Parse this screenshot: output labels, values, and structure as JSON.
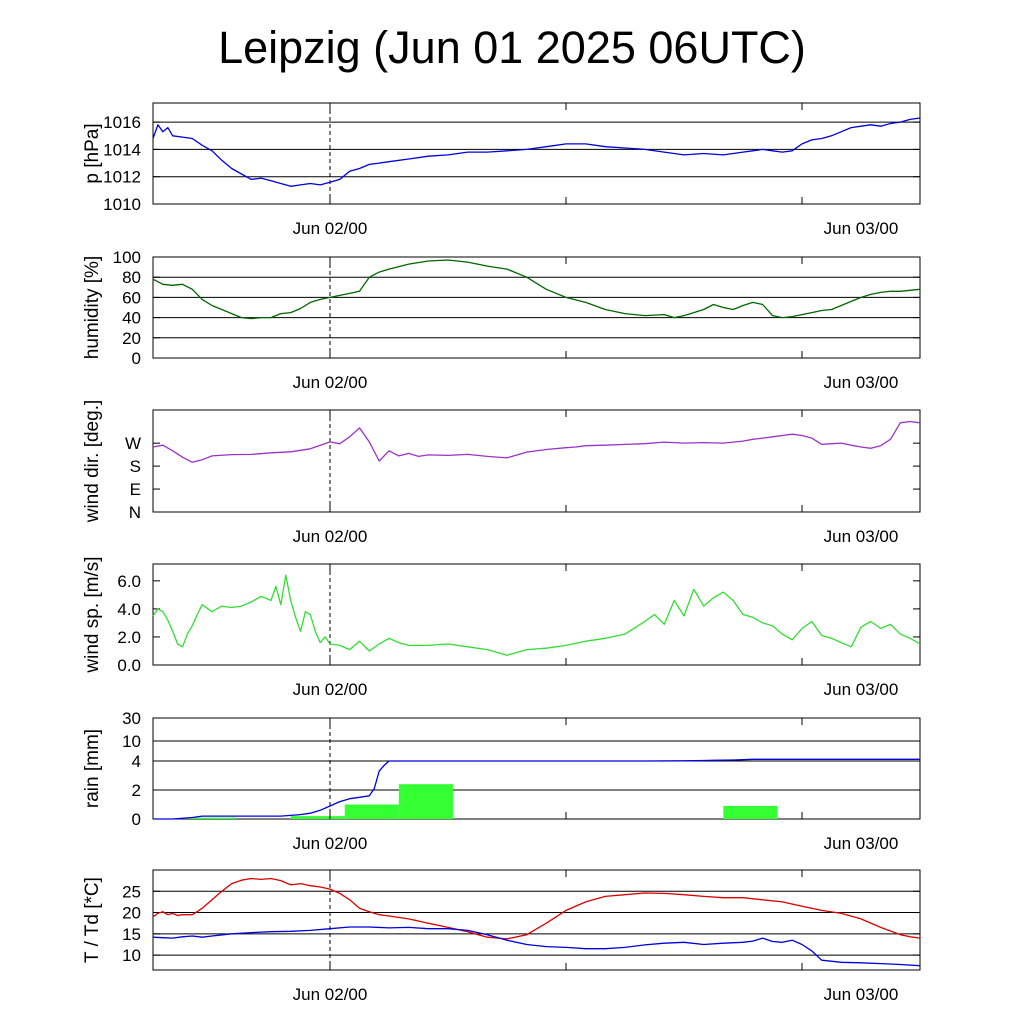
{
  "title": "Leipzig (Jun 01 2025 06UTC)",
  "time_axis": {
    "start": "Jun 01 2025 06UTC",
    "end": "Jun 03 2025 00UTC",
    "tick_labels": [
      "Jun 02/00",
      "Jun 03/00"
    ],
    "dashed_line_at": "Jun 02/00"
  },
  "chart_data": [
    {
      "type": "line",
      "ylabel": "p [hPa]",
      "ylim": [
        1010,
        1017.4
      ],
      "yticks": [
        1010,
        1012,
        1014,
        1016
      ],
      "ytick_labels": [
        "1010",
        "1012",
        "1014",
        "1016"
      ],
      "grid": "horizontal",
      "series": [
        {
          "color": "#0000dd",
          "x_hours": [
            0,
            0.5,
            1,
            1.5,
            2,
            3,
            4,
            5,
            6,
            7,
            8,
            9,
            10,
            11,
            12,
            13,
            14,
            15,
            16,
            17,
            18,
            19,
            20,
            21,
            22,
            23,
            24,
            26,
            28,
            30,
            32,
            34,
            36,
            38,
            40,
            42,
            44,
            46,
            48,
            50,
            52,
            54,
            56,
            58,
            60,
            61,
            62,
            63,
            64,
            65,
            66,
            67,
            68,
            69,
            70,
            71,
            72,
            73,
            74,
            75,
            76,
            77,
            78
          ],
          "values": [
            1014.8,
            1015.8,
            1015.3,
            1015.6,
            1015.0,
            1014.9,
            1014.8,
            1014.3,
            1013.9,
            1013.2,
            1012.6,
            1012.2,
            1011.8,
            1011.9,
            1011.7,
            1011.5,
            1011.3,
            1011.4,
            1011.5,
            1011.4,
            1011.6,
            1011.8,
            1012.4,
            1012.6,
            1012.9,
            1013.0,
            1013.1,
            1013.3,
            1013.5,
            1013.6,
            1013.8,
            1013.8,
            1013.9,
            1014.0,
            1014.2,
            1014.4,
            1014.4,
            1014.2,
            1014.1,
            1014.0,
            1013.8,
            1013.6,
            1013.7,
            1013.6,
            1013.8,
            1013.9,
            1014.0,
            1013.9,
            1013.8,
            1013.9,
            1014.4,
            1014.7,
            1014.8,
            1015.0,
            1015.3,
            1015.6,
            1015.7,
            1015.8,
            1015.7,
            1015.9,
            1016.0,
            1016.2,
            1016.3
          ]
        }
      ]
    },
    {
      "type": "line",
      "ylabel": "humidity [%]",
      "ylim": [
        0,
        100
      ],
      "yticks": [
        0,
        20,
        40,
        60,
        80,
        100
      ],
      "ytick_labels": [
        "0",
        "20",
        "40",
        "60",
        "80",
        "100"
      ],
      "grid": "horizontal",
      "series": [
        {
          "color": "#006600",
          "x_hours": [
            0,
            1,
            2,
            3,
            4,
            5,
            6,
            7,
            8,
            9,
            10,
            11,
            12,
            13,
            14,
            15,
            16,
            17,
            18,
            19,
            20,
            21,
            22,
            23,
            24,
            26,
            28,
            30,
            32,
            34,
            36,
            38,
            40,
            42,
            44,
            46,
            48,
            50,
            52,
            53,
            54,
            55,
            56,
            57,
            58,
            59,
            60,
            61,
            62,
            63,
            64,
            65,
            66,
            67,
            68,
            69,
            70,
            71,
            72,
            73,
            74,
            75,
            76,
            77,
            78
          ],
          "values": [
            78,
            73,
            72,
            73,
            68,
            58,
            52,
            48,
            44,
            40,
            39,
            40,
            40,
            44,
            45,
            49,
            55,
            58,
            60,
            62,
            64,
            66,
            80,
            85,
            88,
            93,
            96,
            97,
            95,
            91,
            88,
            80,
            68,
            60,
            55,
            48,
            44,
            42,
            43,
            40,
            42,
            45,
            48,
            53,
            50,
            48,
            52,
            55,
            53,
            42,
            40,
            41,
            43,
            45,
            47,
            48,
            52,
            56,
            60,
            63,
            65,
            66,
            66,
            67,
            68
          ]
        }
      ]
    },
    {
      "type": "line",
      "ylabel": "wind dir. [deg.]",
      "ylim": [
        0,
        400
      ],
      "yticks": [
        0,
        90,
        180,
        270
      ],
      "ytick_labels": [
        "N",
        "E",
        "S",
        "W"
      ],
      "grid": "none",
      "series": [
        {
          "color": "#9933cc",
          "x_hours": [
            0,
            1,
            2,
            3,
            4,
            5,
            6,
            8,
            10,
            12,
            14,
            16,
            18,
            19,
            20,
            21,
            22,
            23,
            24,
            25,
            26,
            27,
            28,
            30,
            32,
            34,
            36,
            38,
            40,
            42,
            43,
            44,
            46,
            48,
            50,
            52,
            54,
            56,
            58,
            60,
            61,
            62,
            63,
            64,
            65,
            66,
            67,
            68,
            69,
            70,
            71,
            72,
            73,
            74,
            75,
            76,
            77,
            78
          ],
          "values": [
            255,
            262,
            240,
            215,
            195,
            205,
            220,
            225,
            226,
            232,
            236,
            248,
            275,
            268,
            295,
            330,
            275,
            200,
            240,
            220,
            230,
            218,
            224,
            222,
            226,
            218,
            212,
            235,
            245,
            252,
            255,
            260,
            262,
            265,
            268,
            274,
            270,
            272,
            270,
            278,
            285,
            290,
            295,
            300,
            305,
            300,
            290,
            265,
            268,
            270,
            262,
            255,
            250,
            260,
            285,
            350,
            355,
            350
          ]
        }
      ]
    },
    {
      "type": "line",
      "ylabel": "wind sp. [m/s]",
      "ylim": [
        0,
        7.2
      ],
      "yticks": [
        0,
        2,
        4,
        6
      ],
      "ytick_labels": [
        "0.0",
        "2.0",
        "4.0",
        "6.0"
      ],
      "grid": "none",
      "series": [
        {
          "color": "#33dd33",
          "x_hours": [
            0,
            0.5,
            1,
            1.5,
            2,
            2.5,
            3,
            3.5,
            4,
            4.5,
            5,
            6,
            7,
            8,
            9,
            10,
            11,
            12,
            12.5,
            13,
            13.5,
            14,
            14.5,
            15,
            15.5,
            16,
            16.5,
            17,
            17.5,
            18,
            19,
            20,
            21,
            22,
            23,
            24,
            25,
            26,
            27,
            28,
            30,
            32,
            34,
            36,
            38,
            40,
            42,
            44,
            46,
            48,
            50,
            51,
            52,
            53,
            54,
            55,
            56,
            57,
            58,
            59,
            60,
            61,
            62,
            63,
            64,
            65,
            66,
            67,
            68,
            69,
            70,
            71,
            72,
            73,
            74,
            75,
            76,
            77,
            78
          ],
          "values": [
            3.5,
            4.0,
            3.8,
            3.2,
            2.4,
            1.5,
            1.3,
            2.2,
            2.8,
            3.6,
            4.3,
            3.8,
            4.2,
            4.1,
            4.2,
            4.5,
            4.9,
            4.6,
            5.6,
            4.3,
            6.4,
            4.6,
            3.4,
            2.4,
            3.8,
            3.6,
            2.4,
            1.6,
            2.0,
            1.5,
            1.4,
            1.1,
            1.7,
            1.0,
            1.5,
            1.9,
            1.6,
            1.4,
            1.4,
            1.4,
            1.5,
            1.3,
            1.1,
            0.7,
            1.1,
            1.2,
            1.4,
            1.7,
            1.9,
            2.2,
            3.1,
            3.6,
            2.9,
            4.6,
            3.5,
            5.4,
            4.2,
            4.8,
            5.2,
            4.6,
            3.6,
            3.4,
            3.0,
            2.8,
            2.2,
            1.8,
            2.6,
            3.1,
            2.1,
            1.9,
            1.6,
            1.3,
            2.7,
            3.1,
            2.6,
            2.9,
            2.2,
            1.9,
            1.5
          ]
        }
      ]
    },
    {
      "type": "bar+line",
      "ylabel": "rain [mm]",
      "ylim": [
        0,
        30
      ],
      "yticks": [
        0,
        2,
        4,
        10,
        30
      ],
      "ytick_labels": [
        "0",
        "2",
        "4",
        "10",
        "30"
      ],
      "scale": "nonlinear (0,2,4,10,30 equally spaced)",
      "grid": "horizontal",
      "bars": {
        "color": "#33ff33",
        "start_hours": [
          3,
          8.5,
          14,
          19.5,
          25,
          30.5,
          36,
          41.5,
          47,
          52.5,
          58,
          63.5,
          69,
          74.5
        ],
        "width_hours": 5.5,
        "values": [
          0.1,
          0.0,
          0.2,
          1.0,
          2.4,
          0.0,
          0.0,
          0.0,
          0.0,
          0.0,
          0.9,
          0.0,
          0.0,
          0.0
        ]
      },
      "series": [
        {
          "color": "#0000dd",
          "name": "",
          "x_hours": [
            0,
            1,
            2,
            3,
            4,
            5,
            6,
            7,
            8,
            9,
            10,
            11,
            12,
            13,
            14,
            15,
            16,
            17,
            18,
            19,
            20,
            21,
            22,
            22.5,
            23,
            23.5,
            24,
            25,
            28,
            40,
            50,
            54,
            55,
            56,
            57,
            58,
            59,
            60,
            61,
            78
          ],
          "values": [
            0,
            0,
            0,
            0.05,
            0.1,
            0.2,
            0.2,
            0.2,
            0.2,
            0.2,
            0.2,
            0.2,
            0.2,
            0.2,
            0.25,
            0.3,
            0.4,
            0.6,
            0.9,
            1.2,
            1.4,
            1.5,
            1.6,
            2.1,
            3.3,
            3.7,
            4.0,
            4.0,
            4.0,
            4.0,
            4.0,
            4.05,
            4.1,
            4.15,
            4.2,
            4.25,
            4.3,
            4.4,
            4.5,
            4.5
          ]
        }
      ]
    },
    {
      "type": "line",
      "ylabel": "T / Td [*C]",
      "ylim": [
        6.5,
        30
      ],
      "yticks": [
        10,
        15,
        20,
        25
      ],
      "ytick_labels": [
        "10",
        "15",
        "20",
        "25"
      ],
      "grid": "horizontal",
      "series": [
        {
          "color": "#dd0000",
          "x_hours": [
            0,
            0.5,
            1,
            1.5,
            2,
            2.5,
            3,
            4,
            5,
            6,
            7,
            8,
            9,
            10,
            11,
            12,
            13,
            14,
            15,
            16,
            17,
            18,
            19,
            20,
            21,
            22,
            23,
            24,
            26,
            28,
            30,
            32,
            34,
            36,
            38,
            40,
            42,
            44,
            46,
            48,
            50,
            52,
            54,
            56,
            58,
            60,
            62,
            64,
            66,
            68,
            70,
            72,
            74,
            76,
            77,
            78
          ],
          "values": [
            19.0,
            19.8,
            20.2,
            19.5,
            19.8,
            19.3,
            19.5,
            19.5,
            21.0,
            23.0,
            25.0,
            26.8,
            27.6,
            28.0,
            27.8,
            28.0,
            27.5,
            26.5,
            26.8,
            26.3,
            26.0,
            25.5,
            24.5,
            23.0,
            21.0,
            20.2,
            19.5,
            19.2,
            18.5,
            17.5,
            16.5,
            15.5,
            14.2,
            13.8,
            14.8,
            17.5,
            20.5,
            22.5,
            23.8,
            24.2,
            24.6,
            24.5,
            24.2,
            23.8,
            23.5,
            23.5,
            23.0,
            22.5,
            21.5,
            20.5,
            19.8,
            18.5,
            16.5,
            14.8,
            14.3,
            14.0
          ]
        },
        {
          "color": "#0000dd",
          "x_hours": [
            0,
            1,
            2,
            3,
            4,
            5,
            6,
            8,
            10,
            12,
            14,
            16,
            18,
            20,
            22,
            24,
            26,
            28,
            30,
            32,
            34,
            36,
            38,
            40,
            42,
            44,
            46,
            48,
            50,
            52,
            54,
            56,
            58,
            60,
            61,
            62,
            63,
            64,
            65,
            66,
            67,
            68,
            70,
            72,
            74,
            76,
            78
          ],
          "values": [
            14.2,
            14.1,
            14.0,
            14.3,
            14.5,
            14.2,
            14.5,
            15.0,
            15.3,
            15.5,
            15.6,
            15.8,
            16.2,
            16.6,
            16.6,
            16.4,
            16.5,
            16.2,
            16.2,
            15.8,
            14.8,
            13.5,
            12.5,
            12.0,
            11.8,
            11.5,
            11.5,
            11.8,
            12.4,
            12.8,
            13.0,
            12.5,
            12.8,
            13.0,
            13.3,
            14.0,
            13.2,
            13.0,
            13.5,
            12.5,
            11.0,
            8.8,
            8.3,
            8.2,
            8.0,
            7.8,
            7.5
          ]
        }
      ]
    }
  ]
}
